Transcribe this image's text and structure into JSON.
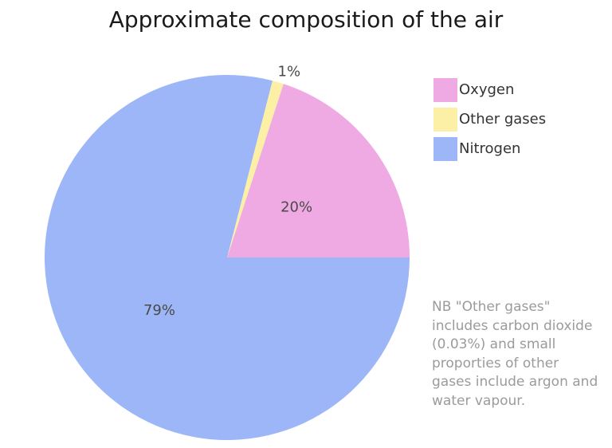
{
  "chart_data": {
    "type": "pie",
    "title": "Approximate composition of the air",
    "slices": [
      {
        "label": "Oxygen",
        "value": 20,
        "display": "20%",
        "color": "#efaae3"
      },
      {
        "label": "Other gases",
        "value": 1,
        "display": "1%",
        "color": "#fcefa6"
      },
      {
        "label": "Nitrogen",
        "value": 79,
        "display": "79%",
        "color": "#9db6f7"
      }
    ],
    "legend": {
      "placement": "top-right",
      "entries": [
        "Oxygen",
        "Other gases",
        "Nitrogen"
      ]
    },
    "start_angle_deg": 0,
    "direction": "counterclockwise"
  },
  "note": "NB \"Other gases\" includes carbon dioxide (0.03%) and small proporties of other gases include argon and water vapour."
}
